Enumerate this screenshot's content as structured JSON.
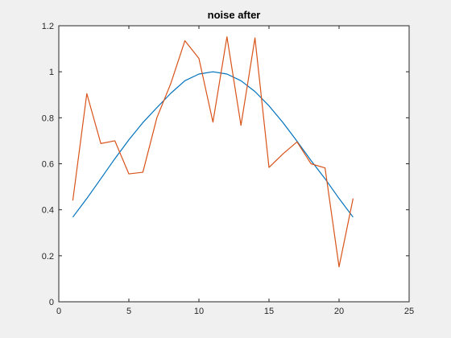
{
  "chart_data": {
    "type": "line",
    "title": "noise after",
    "xlabel": "",
    "ylabel": "",
    "xlim": [
      0,
      25
    ],
    "ylim": [
      0,
      1.2
    ],
    "x_ticks": [
      0,
      5,
      10,
      15,
      20,
      25
    ],
    "y_ticks": [
      0,
      0.2,
      0.4,
      0.6,
      0.8,
      1,
      1.2
    ],
    "x_tick_labels": [
      "0",
      "5",
      "10",
      "15",
      "20",
      "25"
    ],
    "y_tick_labels": [
      "0",
      "0.2",
      "0.4",
      "0.6",
      "0.8",
      "1",
      "1.2"
    ],
    "grid": false,
    "legend": "none",
    "series": [
      {
        "color": "#0072BD",
        "x": [
          1,
          2,
          3,
          4,
          5,
          6,
          7,
          8,
          9,
          10,
          11,
          12,
          13,
          14,
          15,
          16,
          17,
          18,
          19,
          20,
          21
        ],
        "y": [
          0.368,
          0.449,
          0.535,
          0.622,
          0.704,
          0.779,
          0.844,
          0.907,
          0.961,
          0.99,
          1.0,
          0.99,
          0.961,
          0.914,
          0.852,
          0.779,
          0.698,
          0.614,
          0.535,
          0.449,
          0.368
        ]
      },
      {
        "color": "#D95319",
        "x": [
          1,
          2,
          3,
          4,
          5,
          6,
          7,
          8,
          9,
          10,
          11,
          12,
          13,
          14,
          15,
          16,
          17,
          18,
          19,
          20,
          21
        ],
        "y": [
          0.44,
          0.905,
          0.688,
          0.7,
          0.556,
          0.563,
          0.8,
          0.95,
          1.135,
          1.058,
          0.781,
          1.152,
          0.767,
          1.147,
          0.584,
          0.643,
          0.695,
          0.6,
          0.582,
          0.152,
          0.449
        ]
      }
    ]
  }
}
